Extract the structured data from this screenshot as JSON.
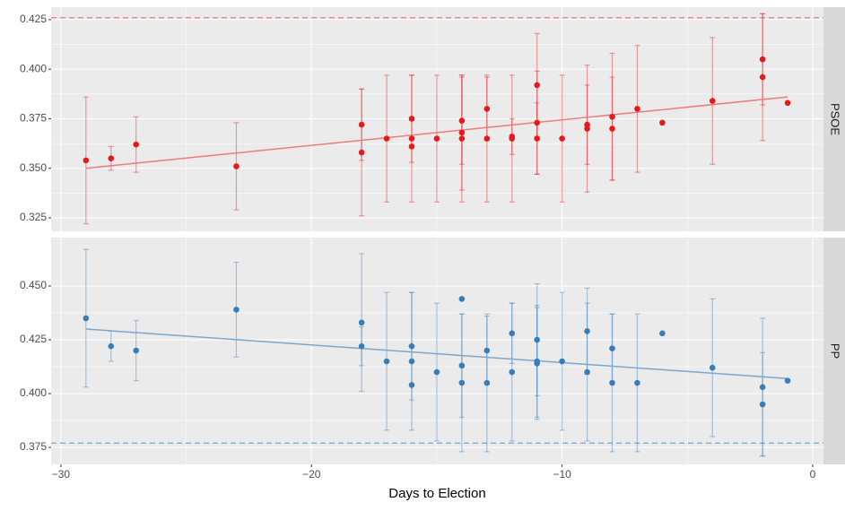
{
  "chart_data": [
    {
      "type": "scatter",
      "facet": "PSOE",
      "color": "#e41a1c",
      "line_color": "#ee7b7b",
      "x": [
        -29,
        -28,
        -27,
        -23,
        -18,
        -18,
        -17,
        -16,
        -16,
        -16,
        -15,
        -14,
        -14,
        -14,
        -13,
        -13,
        -12,
        -12,
        -11,
        -11,
        -11,
        -10,
        -9,
        -9,
        -8,
        -8,
        -7,
        -6,
        -4,
        -2,
        -2,
        -1
      ],
      "values": [
        0.354,
        0.355,
        0.362,
        0.351,
        0.372,
        0.358,
        0.365,
        0.375,
        0.365,
        0.361,
        0.365,
        0.374,
        0.368,
        0.365,
        0.38,
        0.365,
        0.366,
        0.365,
        0.392,
        0.373,
        0.365,
        0.365,
        0.372,
        0.37,
        0.376,
        0.37,
        0.38,
        0.373,
        0.384,
        0.405,
        0.396,
        0.383
      ],
      "errors": [
        0.032,
        0.006,
        0.014,
        0.022,
        0.018,
        0.032,
        0.032,
        0.022,
        0.032,
        null,
        0.032,
        0.022,
        0.029,
        0.032,
        0.016,
        0.032,
        0.009,
        0.032,
        0.026,
        0.026,
        0.018,
        0.032,
        0.02,
        0.032,
        0.032,
        0.026,
        0.032,
        null,
        0.032,
        0.023,
        0.032,
        null
      ],
      "trend": {
        "x": [
          -29,
          -1
        ],
        "y": [
          0.35,
          0.386
        ]
      },
      "hline": 0.426,
      "xlim": [
        -30.39,
        0.43
      ],
      "xticks": [
        {
          "value": -30,
          "label": "−30"
        },
        {
          "value": -20,
          "label": "−20"
        },
        {
          "value": -10,
          "label": "−10"
        },
        0
      ],
      "ylim": [
        0.3182,
        0.4313
      ],
      "yticks": [
        0.325,
        {
          "value": 0.35,
          "label": "0.350"
        },
        0.375,
        {
          "value": 0.4,
          "label": "0.400"
        },
        0.425
      ],
      "grid": true,
      "show_xaxis": false
    },
    {
      "type": "scatter",
      "facet": "PP",
      "color": "#377eb8",
      "line_color": "#7ba7cf",
      "x": [
        -29,
        -28,
        -27,
        -23,
        -18,
        -18,
        -17,
        -16,
        -16,
        -16,
        -15,
        -14,
        -14,
        -14,
        -13,
        -13,
        -12,
        -12,
        -11,
        -11,
        -11,
        -10,
        -9,
        -9,
        -8,
        -8,
        -7,
        -6,
        -4,
        -2,
        -2,
        -1
      ],
      "values": [
        0.435,
        0.422,
        0.42,
        0.439,
        0.433,
        0.422,
        0.415,
        0.422,
        0.415,
        0.404,
        0.41,
        0.444,
        0.413,
        0.405,
        0.42,
        0.405,
        0.428,
        0.41,
        0.425,
        0.415,
        0.414,
        0.415,
        0.429,
        0.41,
        0.421,
        0.405,
        0.405,
        0.428,
        0.412,
        0.403,
        0.395,
        0.406
      ],
      "errors": [
        0.032,
        0.007,
        0.014,
        0.022,
        0.032,
        0.009,
        0.032,
        0.025,
        0.032,
        null,
        0.032,
        null,
        0.024,
        0.032,
        0.016,
        0.032,
        0.014,
        0.032,
        0.026,
        0.026,
        0.026,
        0.032,
        0.02,
        0.032,
        0.016,
        0.032,
        0.032,
        null,
        0.032,
        0.032,
        0.024,
        null
      ],
      "trend": {
        "x": [
          -29,
          -1
        ],
        "y": [
          0.43,
          0.407
        ]
      },
      "hline": 0.377,
      "xlim": [
        -30.39,
        0.43
      ],
      "xticks": [
        {
          "value": -30,
          "label": "−30"
        },
        {
          "value": -20,
          "label": "−20"
        },
        {
          "value": -10,
          "label": "−10"
        },
        0
      ],
      "ylim": [
        0.3671,
        0.4725
      ],
      "yticks": [
        0.375,
        {
          "value": 0.4,
          "label": "0.400"
        },
        0.425,
        {
          "value": 0.45,
          "label": "0.450"
        }
      ],
      "grid": true,
      "show_xaxis": true,
      "xlabel": "Days to Election"
    }
  ]
}
